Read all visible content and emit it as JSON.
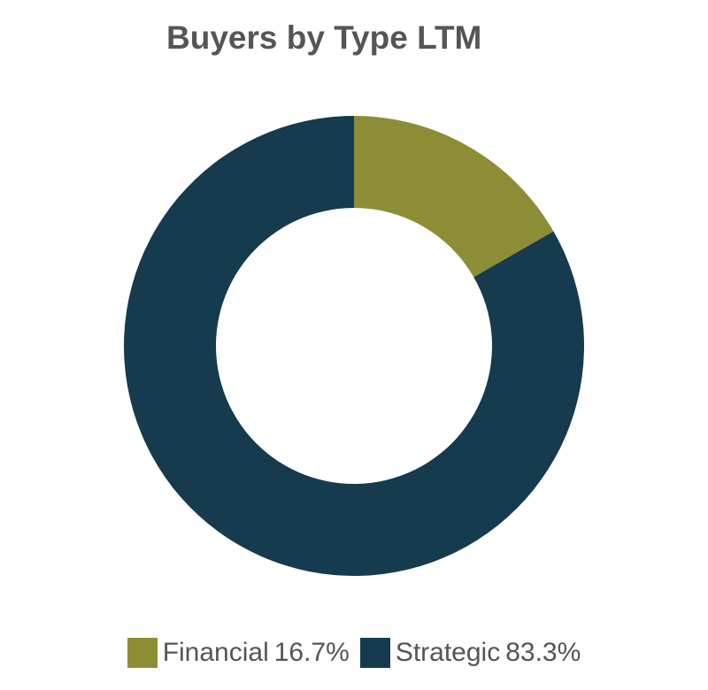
{
  "chart_data": {
    "type": "pie",
    "title": "Buyers by Type LTM",
    "donut": true,
    "slices": [
      {
        "label": "Financial",
        "value": 16.7,
        "value_label": "16.7%",
        "color": "#8d8d36"
      },
      {
        "label": "Strategic",
        "value": 83.3,
        "value_label": "83.3%",
        "color": "#163a4e"
      }
    ],
    "legend_position": "bottom"
  }
}
